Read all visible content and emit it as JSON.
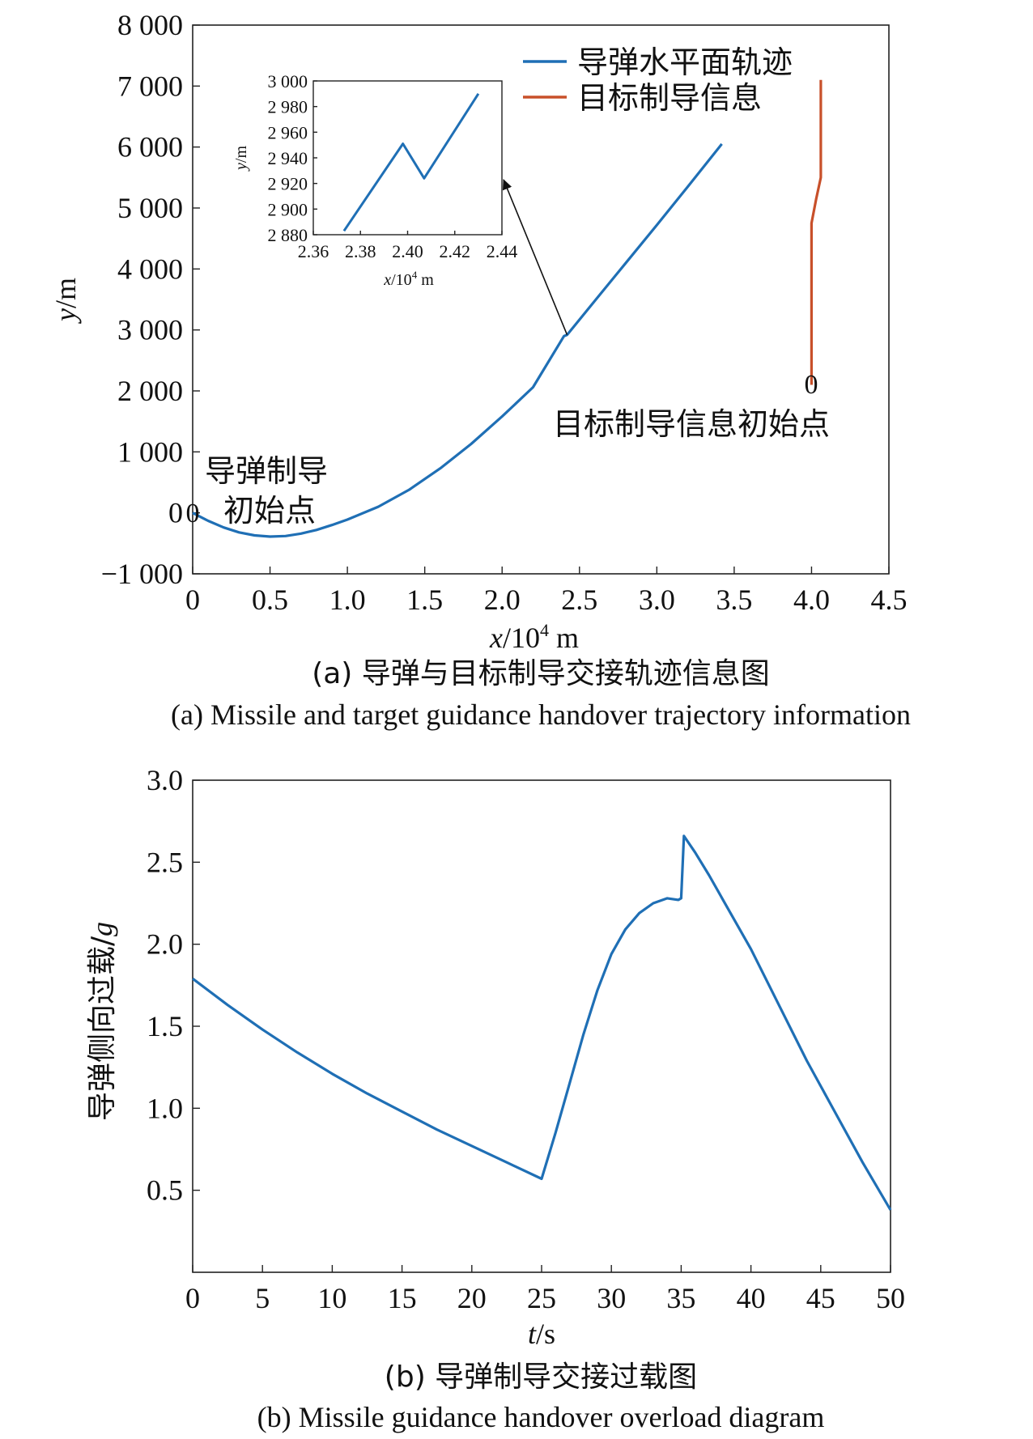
{
  "chart_data": [
    {
      "type": "line",
      "xlabel_var": "x",
      "xlabel_unit": "/10",
      "xlabel_exp": "4",
      "xlabel_tail": " m",
      "ylabel_var": "y",
      "ylabel_unit": "/m",
      "xlim": [
        0,
        4.5
      ],
      "ylim": [
        -1000,
        8000
      ],
      "xticks": [
        0,
        0.5,
        1.0,
        1.5,
        2.0,
        2.5,
        3.0,
        3.5,
        4.0,
        4.5
      ],
      "xtick_labels": [
        "0",
        "0.5",
        "1.0",
        "1.5",
        "2.0",
        "2.5",
        "3.0",
        "3.5",
        "4.0",
        "4.5"
      ],
      "yticks": [
        -1000,
        0,
        1000,
        2000,
        3000,
        4000,
        5000,
        6000,
        7000,
        8000
      ],
      "ytick_labels": [
        "−1 000",
        "0",
        "1 000",
        "2 000",
        "3 000",
        "4 000",
        "5 000",
        "6 000",
        "7 000",
        "8 000"
      ],
      "legend_position": "top-right",
      "series": [
        {
          "name": "导弹水平面轨迹",
          "color": "#1f6fb5",
          "x": [
            0,
            0.1,
            0.2,
            0.3,
            0.4,
            0.5,
            0.6,
            0.7,
            0.8,
            0.9,
            1.0,
            1.2,
            1.4,
            1.6,
            1.8,
            2.0,
            2.2,
            2.4,
            2.42,
            2.6,
            2.8,
            3.0,
            3.2,
            3.42
          ],
          "y": [
            0,
            -130,
            -240,
            -320,
            -370,
            -390,
            -380,
            -340,
            -280,
            -200,
            -110,
            100,
            380,
            730,
            1130,
            1580,
            2060,
            2900,
            2920,
            3480,
            4100,
            4720,
            5350,
            6050
          ]
        },
        {
          "name": "目标制导信息",
          "color": "#c8502a",
          "x": [
            4.0,
            4.0,
            4.0,
            4.03,
            4.06,
            4.06
          ],
          "y": [
            2100,
            3500,
            4750,
            5150,
            5500,
            7100
          ]
        }
      ],
      "annotations": {
        "missile_start_line1": "导弹制导",
        "missile_start_line2": "初始点",
        "missile_start_marker": "0",
        "target_start": "目标制导信息初始点",
        "target_start_marker": "0"
      },
      "inset": {
        "type": "line",
        "xlabel_var": "x",
        "xlabel_unit": "/10",
        "xlabel_exp": "4",
        "xlabel_tail": " m",
        "ylabel_var": "y",
        "ylabel_unit": "/m",
        "xlim": [
          2.36,
          2.44
        ],
        "ylim": [
          2880,
          3000
        ],
        "xticks": [
          2.36,
          2.38,
          2.4,
          2.42,
          2.44
        ],
        "xtick_labels": [
          "2.36",
          "2.38",
          "2.40",
          "2.42",
          "2.44"
        ],
        "yticks": [
          2880,
          2900,
          2920,
          2940,
          2960,
          2980,
          3000
        ],
        "ytick_labels": [
          "2 880",
          "2 900",
          "2 920",
          "2 940",
          "2 960",
          "2 980",
          "3 000"
        ],
        "x": [
          2.373,
          2.398,
          2.407,
          2.43
        ],
        "y": [
          2883,
          2951,
          2924,
          2990
        ],
        "color": "#1f6fb5",
        "pointer_target": [
          2.42,
          2920
        ]
      },
      "caption_cn": "(a) 导弹与目标制导交接轨迹信息图",
      "caption_en": "(a) Missile and target guidance handover trajectory information"
    },
    {
      "type": "line",
      "xlabel_var": "t",
      "xlabel_unit": "/s",
      "ylabel_text": "导弹侧向过载/",
      "ylabel_var": "g",
      "xlim": [
        0,
        50
      ],
      "ylim": [
        0,
        3.0
      ],
      "xticks": [
        0,
        5,
        10,
        15,
        20,
        25,
        30,
        35,
        40,
        45,
        50
      ],
      "xtick_labels": [
        "0",
        "5",
        "10",
        "15",
        "20",
        "25",
        "30",
        "35",
        "40",
        "45",
        "50"
      ],
      "yticks": [
        0.5,
        1.0,
        1.5,
        2.0,
        2.5,
        3.0
      ],
      "ytick_labels": [
        "0.5",
        "1.0",
        "1.5",
        "2.0",
        "2.5",
        "3.0"
      ],
      "series": [
        {
          "color": "#1f6fb5",
          "x": [
            0,
            2.5,
            5,
            7.5,
            10,
            12.5,
            15,
            17.5,
            20,
            22.5,
            25,
            26,
            27,
            28,
            29,
            30,
            31,
            32,
            33,
            34,
            34.8,
            35.0,
            35.2,
            36,
            37,
            38,
            40,
            42,
            44,
            46,
            48,
            50
          ],
          "y": [
            1.79,
            1.63,
            1.48,
            1.34,
            1.21,
            1.09,
            0.98,
            0.87,
            0.77,
            0.67,
            0.57,
            0.85,
            1.15,
            1.45,
            1.72,
            1.94,
            2.09,
            2.19,
            2.25,
            2.28,
            2.27,
            2.28,
            2.66,
            2.56,
            2.42,
            2.27,
            1.97,
            1.63,
            1.29,
            0.98,
            0.67,
            0.38
          ]
        }
      ],
      "caption_cn": "(b) 导弹制导交接过载图",
      "caption_en": "(b) Missile guidance handover overload diagram"
    }
  ]
}
